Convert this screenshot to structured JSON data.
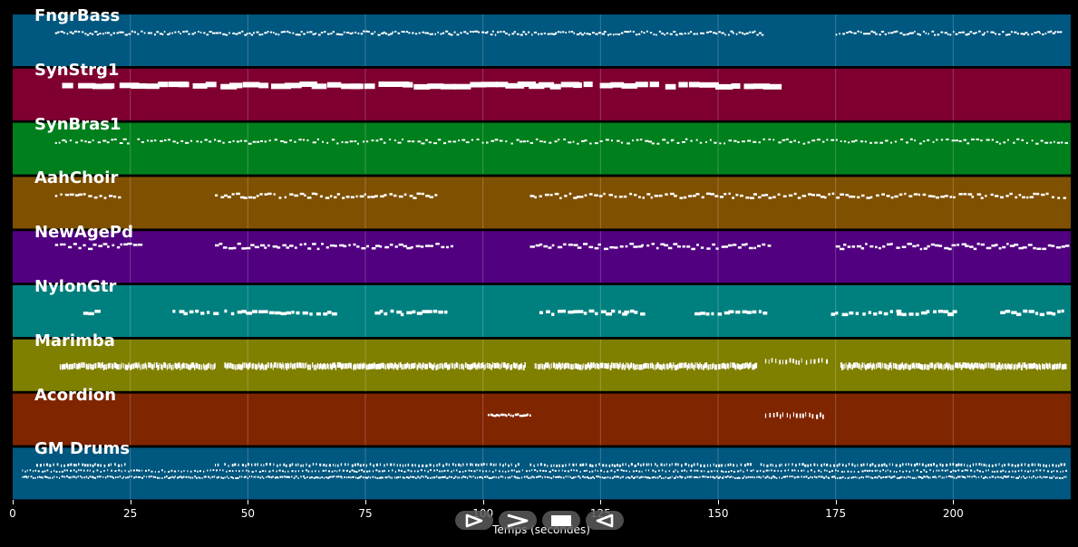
{
  "tracks": [
    {
      "name": "FngrBass",
      "color": "#00577f",
      "style": "bass"
    },
    {
      "name": "SynStrg1",
      "color": "#7f0030",
      "style": "strings"
    },
    {
      "name": "SynBras1",
      "color": "#007f1d",
      "style": "brass"
    },
    {
      "name": "AahChoir",
      "color": "#7f5000",
      "style": "choir"
    },
    {
      "name": "NewAgePd",
      "color": "#51007f",
      "style": "pad"
    },
    {
      "name": "NylonGtr",
      "color": "#007f7f",
      "style": "guitar"
    },
    {
      "name": "Marimba",
      "color": "#7f7f00",
      "style": "marimba"
    },
    {
      "name": "Acordion",
      "color": "#7f2500",
      "style": "accordion"
    },
    {
      "name": "GM Drums",
      "color": "#00577f",
      "style": "drums"
    }
  ],
  "axis": {
    "label": "Temps (secondes)",
    "ticks": [
      "0",
      "25",
      "50",
      "75",
      "100",
      "125",
      "150",
      "175",
      "200"
    ],
    "range": [
      0,
      225
    ]
  },
  "transport": [
    {
      "name": "play-button",
      "icon": "play-icon"
    },
    {
      "name": "forward-button",
      "icon": "forward-icon"
    },
    {
      "name": "stop-button",
      "icon": "stop-icon"
    },
    {
      "name": "rewind-button",
      "icon": "rewind-icon"
    }
  ]
}
